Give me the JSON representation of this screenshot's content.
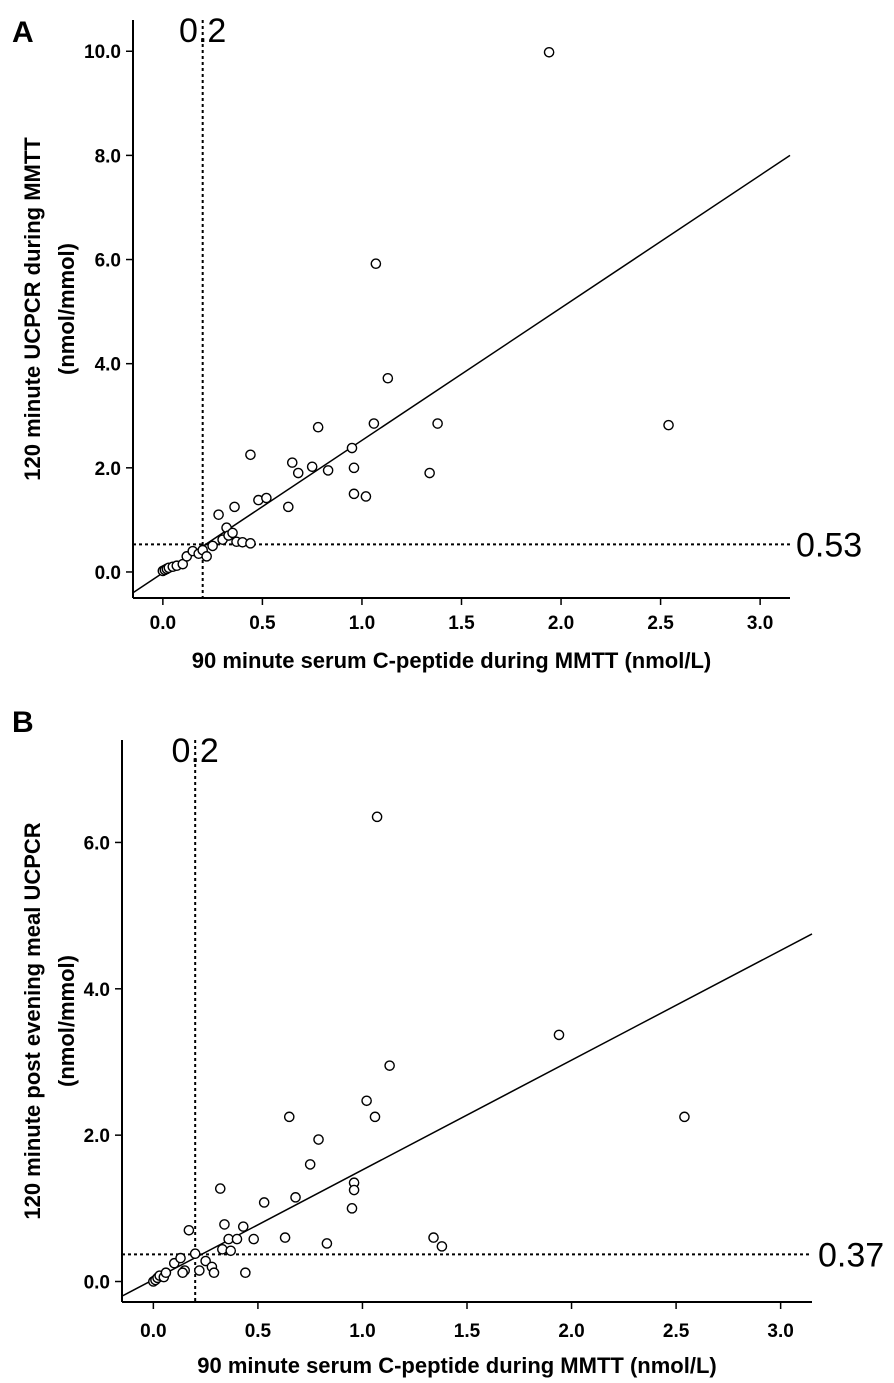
{
  "chart_data": [
    {
      "type": "scatter",
      "panel": "A",
      "xlabel": "90 minute serum C-peptide during MMTT (nmol/L)",
      "ylabel_lines": [
        "120 minute UCPCR during MMTT",
        "(nmol/mmol)"
      ],
      "xticks": [
        "0.0",
        "0.5",
        "1.0",
        "1.5",
        "2.0",
        "2.5",
        "3.0"
      ],
      "yticks": [
        "0.0",
        "2.0",
        "4.0",
        "6.0",
        "8.0",
        "10.0"
      ],
      "xlim": [
        -0.15,
        3.15
      ],
      "ylim": [
        -0.5,
        10.6
      ],
      "xcut": 0.2,
      "xcut_label": "0.2",
      "ycut": 0.53,
      "ycut_label": "0.53",
      "fit": {
        "x": [
          -0.15,
          3.15
        ],
        "y": [
          -0.4,
          8.0
        ]
      },
      "points": [
        [
          0.0,
          0.02
        ],
        [
          0.01,
          0.04
        ],
        [
          0.02,
          0.06
        ],
        [
          0.03,
          0.08
        ],
        [
          0.05,
          0.1
        ],
        [
          0.07,
          0.12
        ],
        [
          0.1,
          0.15
        ],
        [
          0.12,
          0.3
        ],
        [
          0.15,
          0.4
        ],
        [
          0.18,
          0.35
        ],
        [
          0.2,
          0.42
        ],
        [
          0.22,
          0.3
        ],
        [
          0.25,
          0.5
        ],
        [
          0.28,
          1.1
        ],
        [
          0.3,
          0.62
        ],
        [
          0.32,
          0.85
        ],
        [
          0.33,
          0.7
        ],
        [
          0.35,
          0.75
        ],
        [
          0.36,
          1.25
        ],
        [
          0.37,
          0.58
        ],
        [
          0.4,
          0.57
        ],
        [
          0.44,
          0.55
        ],
        [
          0.44,
          2.25
        ],
        [
          0.48,
          1.38
        ],
        [
          0.52,
          1.42
        ],
        [
          0.63,
          1.25
        ],
        [
          0.65,
          2.1
        ],
        [
          0.68,
          1.9
        ],
        [
          0.75,
          2.02
        ],
        [
          0.78,
          2.78
        ],
        [
          0.83,
          1.95
        ],
        [
          0.95,
          2.38
        ],
        [
          0.96,
          2.0
        ],
        [
          0.96,
          1.5
        ],
        [
          1.02,
          1.45
        ],
        [
          1.06,
          2.85
        ],
        [
          1.07,
          5.92
        ],
        [
          1.13,
          3.72
        ],
        [
          1.34,
          1.9
        ],
        [
          1.38,
          2.85
        ],
        [
          1.94,
          9.98
        ],
        [
          2.54,
          2.82
        ]
      ]
    },
    {
      "type": "scatter",
      "panel": "B",
      "xlabel": "90 minute serum C-peptide during MMTT (nmol/L)",
      "ylabel_lines": [
        "120 minute post evening meal UCPCR",
        "(nmol/mmol)"
      ],
      "xticks": [
        "0.0",
        "0.5",
        "1.0",
        "1.5",
        "2.0",
        "2.5",
        "3.0"
      ],
      "yticks": [
        "0.0",
        "2.0",
        "4.0",
        "6.0"
      ],
      "xlim": [
        -0.15,
        3.15
      ],
      "ylim": [
        -0.28,
        7.4
      ],
      "xcut": 0.2,
      "xcut_label": "0.2",
      "ycut": 0.37,
      "ycut_label": "0.37",
      "fit": {
        "x": [
          -0.15,
          3.15
        ],
        "y": [
          -0.2,
          4.75
        ]
      },
      "points": [
        [
          0.0,
          0.0
        ],
        [
          0.01,
          0.02
        ],
        [
          0.02,
          0.05
        ],
        [
          0.03,
          0.08
        ],
        [
          0.05,
          0.06
        ],
        [
          0.06,
          0.12
        ],
        [
          0.1,
          0.25
        ],
        [
          0.13,
          0.32
        ],
        [
          0.15,
          0.15
        ],
        [
          0.14,
          0.12
        ],
        [
          0.17,
          0.7
        ],
        [
          0.2,
          0.38
        ],
        [
          0.22,
          0.15
        ],
        [
          0.25,
          0.28
        ],
        [
          0.28,
          0.2
        ],
        [
          0.29,
          0.12
        ],
        [
          0.32,
          1.27
        ],
        [
          0.33,
          0.44
        ],
        [
          0.34,
          0.78
        ],
        [
          0.36,
          0.58
        ],
        [
          0.37,
          0.42
        ],
        [
          0.4,
          0.58
        ],
        [
          0.43,
          0.75
        ],
        [
          0.44,
          0.12
        ],
        [
          0.48,
          0.58
        ],
        [
          0.53,
          1.08
        ],
        [
          0.63,
          0.6
        ],
        [
          0.65,
          2.25
        ],
        [
          0.68,
          1.15
        ],
        [
          0.75,
          1.6
        ],
        [
          0.79,
          1.94
        ],
        [
          0.83,
          0.52
        ],
        [
          0.95,
          1.0
        ],
        [
          0.96,
          1.35
        ],
        [
          0.96,
          1.25
        ],
        [
          1.02,
          2.47
        ],
        [
          1.06,
          2.25
        ],
        [
          1.07,
          6.35
        ],
        [
          1.13,
          2.95
        ],
        [
          1.34,
          0.6
        ],
        [
          1.38,
          0.48
        ],
        [
          1.94,
          3.37
        ],
        [
          2.54,
          2.25
        ]
      ]
    }
  ]
}
